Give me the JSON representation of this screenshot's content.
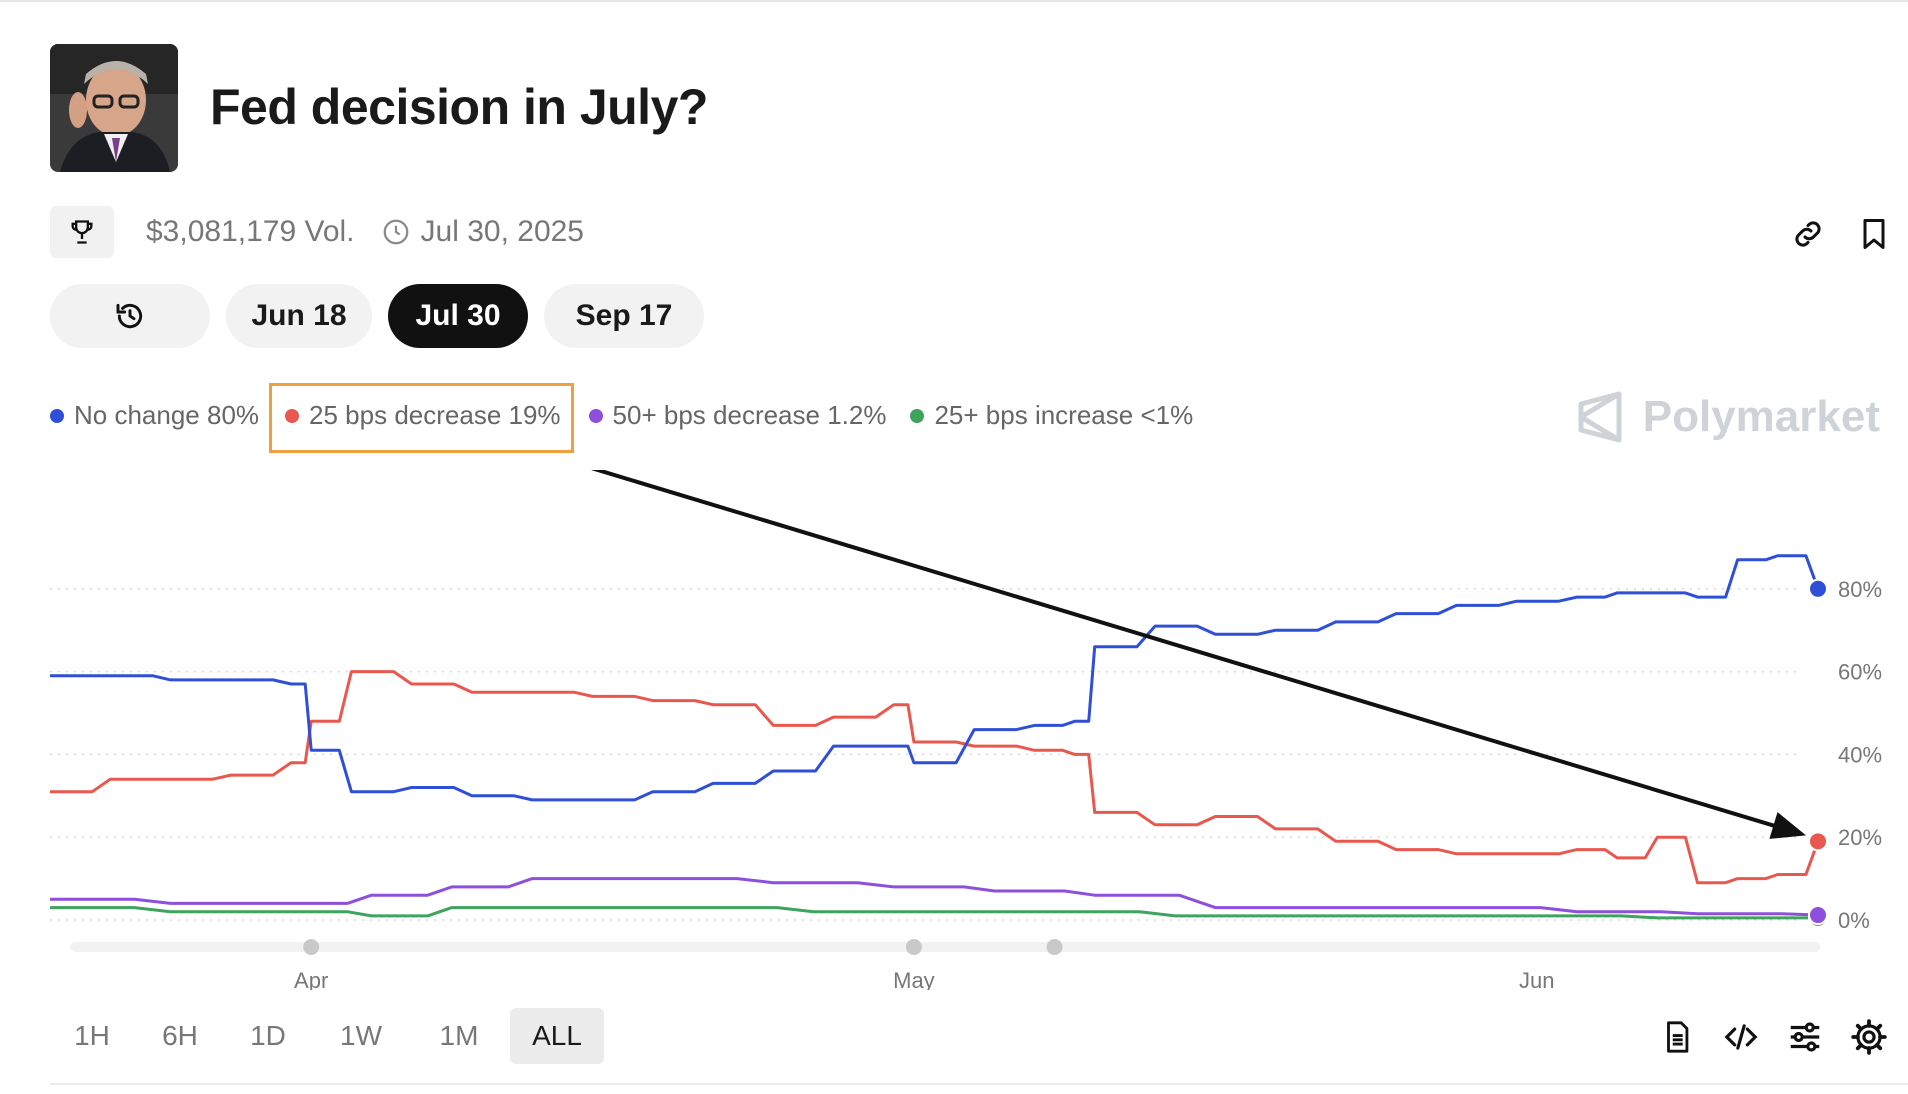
{
  "header": {
    "title": "Fed decision in July?",
    "volume": "$3,081,179 Vol.",
    "end_date": "Jul 30, 2025"
  },
  "date_tabs": [
    {
      "label": "",
      "icon": "history-icon"
    },
    {
      "label": "Jun 18"
    },
    {
      "label": "Jul 30",
      "active": true
    },
    {
      "label": "Sep 17"
    }
  ],
  "legend": [
    {
      "label": "No change 80%",
      "color": "#2f4fd6"
    },
    {
      "label": "25 bps decrease 19%",
      "color": "#e8584f"
    },
    {
      "label": "50+ bps decrease 1.2%",
      "color": "#8e4fdc"
    },
    {
      "label": "25+ bps increase <1%",
      "color": "#3da35d"
    }
  ],
  "brand": "Polymarket",
  "time_ranges": [
    {
      "label": "1H"
    },
    {
      "label": "6H"
    },
    {
      "label": "1D"
    },
    {
      "label": "1W"
    },
    {
      "label": "1M"
    },
    {
      "label": "ALL",
      "active": true
    }
  ],
  "colors": {
    "accent": "#111111",
    "highlight_box": "#f0a03c",
    "annotation_arrow": "#111111"
  },
  "chart_data": {
    "type": "line",
    "title": "",
    "xlabel": "",
    "ylabel": "",
    "ylim": [
      0,
      100
    ],
    "y_ticks": [
      "80%",
      "60%",
      "40%",
      "20%",
      "0%"
    ],
    "x_ticks": [
      {
        "label": "Apr",
        "x": "Apr 1"
      },
      {
        "label": "May",
        "x": "May 1"
      },
      {
        "label": "Jun",
        "x": "Jun 1"
      }
    ],
    "x_range": [
      "Mar 19",
      "Jun 15"
    ],
    "grid": "dotted horizontal",
    "series": [
      {
        "name": "No change",
        "x": [
          "Mar 19",
          "Mar 22",
          "Mar 25",
          "Mar 28",
          "Mar 31",
          "Apr 1",
          "Apr 3",
          "Apr 6",
          "Apr 9",
          "Apr 12",
          "Apr 15",
          "Apr 18",
          "Apr 21",
          "Apr 24",
          "Apr 27",
          "Apr 30",
          "May 1",
          "May 4",
          "May 7",
          "May 9",
          "May 10",
          "May 13",
          "May 16",
          "May 19",
          "May 22",
          "May 25",
          "May 28",
          "May 31",
          "Jun 3",
          "Jun 5",
          "Jun 7",
          "Jun 9",
          "Jun 11",
          "Jun 13",
          "Jun 15"
        ],
        "values": [
          59,
          59,
          58,
          58,
          57,
          41,
          31,
          32,
          30,
          29,
          29,
          31,
          33,
          36,
          42,
          42,
          38,
          46,
          47,
          48,
          66,
          71,
          69,
          70,
          72,
          74,
          76,
          77,
          78,
          79,
          79,
          78,
          87,
          88,
          80
        ]
      },
      {
        "name": "25 bps decrease",
        "x": [
          "Mar 19",
          "Mar 22",
          "Mar 25",
          "Mar 28",
          "Mar 31",
          "Apr 1",
          "Apr 3",
          "Apr 6",
          "Apr 9",
          "Apr 12",
          "Apr 15",
          "Apr 18",
          "Apr 21",
          "Apr 24",
          "Apr 27",
          "Apr 30",
          "May 1",
          "May 4",
          "May 7",
          "May 9",
          "May 10",
          "May 13",
          "May 16",
          "May 19",
          "May 22",
          "May 25",
          "May 28",
          "May 31",
          "Jun 3",
          "Jun 5",
          "Jun 7",
          "Jun 9",
          "Jun 11",
          "Jun 13",
          "Jun 15"
        ],
        "values": [
          31,
          34,
          34,
          35,
          38,
          48,
          60,
          57,
          55,
          55,
          54,
          53,
          52,
          47,
          49,
          52,
          43,
          42,
          41,
          40,
          26,
          23,
          25,
          22,
          19,
          17,
          16,
          16,
          17,
          15,
          20,
          9,
          10,
          11,
          19
        ]
      },
      {
        "name": "50+ bps decrease",
        "x": [
          "Mar 19",
          "Mar 25",
          "Mar 31",
          "Apr 4",
          "Apr 8",
          "Apr 12",
          "Apr 18",
          "Apr 24",
          "Apr 30",
          "May 5",
          "May 10",
          "May 16",
          "May 22",
          "May 28",
          "Jun 3",
          "Jun 9",
          "Jun 15"
        ],
        "values": [
          5,
          4,
          4,
          6,
          8,
          10,
          10,
          9,
          8,
          7,
          6,
          3,
          3,
          3,
          2,
          1.5,
          1.2
        ]
      },
      {
        "name": "25+ bps increase",
        "x": [
          "Mar 19",
          "Mar 25",
          "Mar 31",
          "Apr 4",
          "Apr 8",
          "Apr 14",
          "Apr 20",
          "Apr 26",
          "May 2",
          "May 8",
          "May 14",
          "May 20",
          "May 26",
          "Jun 1",
          "Jun 7",
          "Jun 15"
        ],
        "values": [
          3,
          2,
          2,
          1,
          3,
          3,
          3,
          2,
          2,
          2,
          1,
          1,
          1,
          1,
          0.5,
          0.5
        ]
      }
    ],
    "annotations": [
      {
        "type": "arrow",
        "from": "legend: 25 bps decrease 19%",
        "to": "25 bps decrease endpoint (Jun 15)"
      }
    ]
  }
}
